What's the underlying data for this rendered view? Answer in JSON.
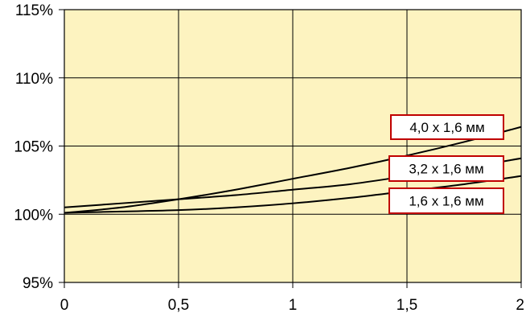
{
  "chart_data": {
    "type": "line",
    "title": "",
    "xlabel": "",
    "ylabel": "",
    "xlim": [
      0,
      2
    ],
    "ylim": [
      95,
      115
    ],
    "x_ticks": [
      0,
      0.5,
      1,
      1.5,
      2
    ],
    "x_tick_labels": [
      "0",
      "0,5",
      "1",
      "1,5",
      "2"
    ],
    "y_ticks": [
      95,
      100,
      105,
      110,
      115
    ],
    "y_tick_labels": [
      "95%",
      "100%",
      "105%",
      "110%",
      "115%"
    ],
    "grid": true,
    "plot_background": "#fdf3c0",
    "series_color": "#000000",
    "legend_border_color": "#c00000",
    "series": [
      {
        "name": "4,0 x 1,6 мм",
        "x": [
          0,
          0.25,
          0.5,
          0.75,
          1,
          1.25,
          1.5,
          1.75,
          2
        ],
        "values": [
          100.1,
          100.5,
          101.1,
          101.8,
          102.6,
          103.4,
          104.3,
          105.3,
          106.4
        ]
      },
      {
        "name": "3,2 x 1,6 мм",
        "x": [
          0,
          0.25,
          0.5,
          0.75,
          1,
          1.25,
          1.5,
          1.75,
          2
        ],
        "values": [
          100.5,
          100.8,
          101.1,
          101.4,
          101.8,
          102.2,
          102.8,
          103.4,
          104.1
        ]
      },
      {
        "name": "1,6 x 1,6 мм",
        "x": [
          0,
          0.25,
          0.5,
          0.75,
          1,
          1.25,
          1.5,
          1.75,
          2
        ],
        "values": [
          100.1,
          100.2,
          100.3,
          100.5,
          100.8,
          101.2,
          101.7,
          102.2,
          102.8
        ]
      }
    ]
  }
}
